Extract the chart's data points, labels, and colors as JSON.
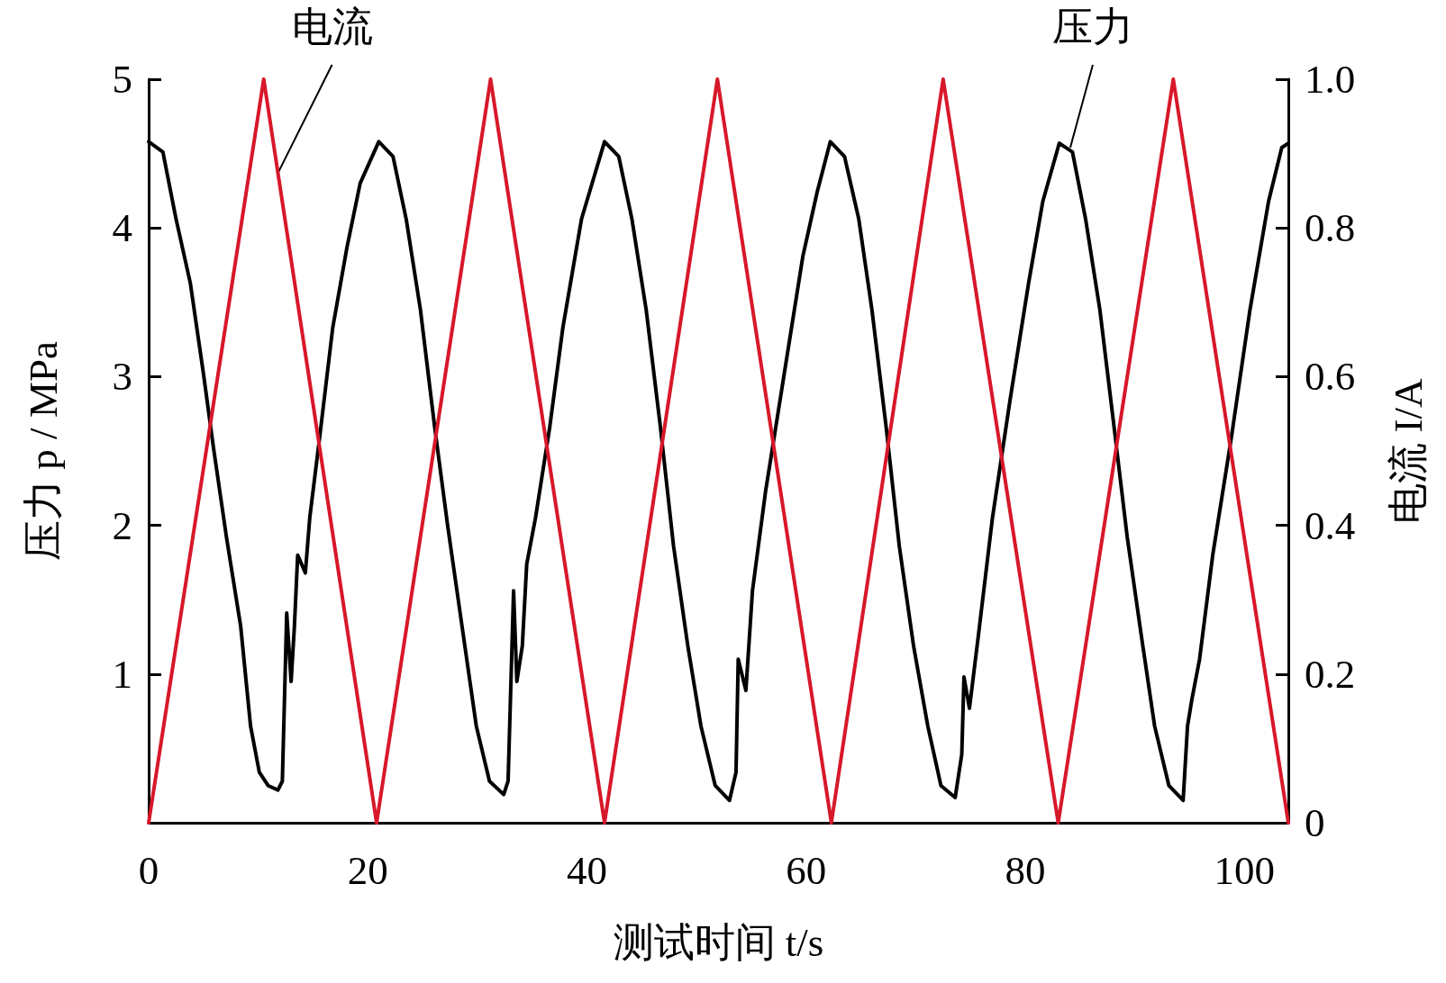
{
  "chart_data": {
    "type": "line",
    "xlabel": "测试时间 t/s",
    "ylabel": "压力 p / MPa",
    "y2label": "电流 I/A",
    "xlim": [
      0,
      104
    ],
    "xticks": [
      0,
      20,
      40,
      60,
      80,
      100
    ],
    "ylim": [
      0,
      5
    ],
    "yticks": [
      1,
      2,
      3,
      4,
      5
    ],
    "y2lim": [
      0,
      1
    ],
    "y2ticks": [
      0,
      0.2,
      0.4,
      0.6,
      {
        "value": 1,
        "label": "1.0"
      },
      0.8
    ],
    "grid": false,
    "marker": "none",
    "line_style": "solid",
    "annotations": [
      {
        "text": "电流",
        "x": 11.8,
        "y": 4.37
      },
      {
        "text": "压力",
        "x": 84.1,
        "y": 4.54
      }
    ],
    "series": [
      {
        "color": "#000000",
        "x": [
          0,
          1.3,
          2.5,
          3.8,
          5.0,
          5.9,
          7.1,
          8.4,
          9.3,
          10.1,
          10.9,
          11.8,
          12.2,
          12.6,
          13.0,
          13.3,
          13.6,
          14.3,
          14.7,
          15.6,
          16.8,
          18.1,
          19.3,
          21.0,
          22.3,
          23.5,
          24.8,
          26.1,
          27.3,
          28.6,
          29.9,
          31.1,
          32.4,
          32.8,
          33.3,
          33.6,
          34.1,
          34.5,
          35.3,
          36.6,
          37.8,
          39.5,
          41.6,
          42.9,
          44.1,
          45.4,
          46.7,
          47.9,
          49.2,
          50.4,
          51.7,
          53.0,
          53.6,
          53.8,
          54.5,
          55.1,
          56.3,
          58.0,
          59.7,
          61.0,
          62.2,
          63.5,
          64.8,
          66.0,
          67.3,
          68.5,
          69.8,
          71.1,
          72.3,
          73.6,
          74.2,
          74.4,
          74.9,
          75.7,
          77.0,
          78.6,
          80.3,
          81.6,
          83.1,
          84.3,
          85.5,
          86.8,
          88.1,
          89.3,
          90.6,
          91.8,
          93.1,
          94.4,
          94.8,
          95.2,
          95.9,
          97.1,
          98.8,
          100.5,
          102.2,
          103.4,
          104.0
        ],
        "values": [
          4.58,
          4.51,
          4.06,
          3.63,
          3.02,
          2.53,
          1.92,
          1.32,
          0.65,
          0.34,
          0.25,
          0.22,
          0.28,
          1.41,
          0.95,
          1.32,
          1.8,
          1.68,
          2.05,
          2.59,
          3.33,
          3.87,
          4.3,
          4.58,
          4.48,
          4.06,
          3.45,
          2.66,
          1.99,
          1.32,
          0.65,
          0.28,
          0.19,
          0.28,
          1.56,
          0.95,
          1.19,
          1.74,
          2.05,
          2.66,
          3.33,
          4.06,
          4.58,
          4.48,
          4.06,
          3.45,
          2.66,
          1.86,
          1.19,
          0.65,
          0.25,
          0.15,
          0.34,
          1.1,
          0.89,
          1.56,
          2.23,
          3.02,
          3.81,
          4.24,
          4.58,
          4.48,
          4.06,
          3.45,
          2.66,
          1.86,
          1.19,
          0.65,
          0.25,
          0.17,
          0.46,
          0.98,
          0.77,
          1.25,
          2.05,
          2.84,
          3.63,
          4.18,
          4.57,
          4.51,
          4.06,
          3.45,
          2.66,
          1.92,
          1.25,
          0.65,
          0.25,
          0.15,
          0.65,
          0.83,
          1.1,
          1.8,
          2.59,
          3.45,
          4.18,
          4.54,
          4.57
        ]
      },
      {
        "color": "#d7182a",
        "axis": "y2",
        "x": [
          0,
          10.5,
          20.8,
          31.2,
          41.6,
          51.9,
          62.3,
          72.5,
          83.0,
          93.5,
          104
        ],
        "values": [
          0,
          1,
          0,
          1,
          0,
          1,
          0,
          1,
          0,
          1,
          0
        ]
      }
    ]
  }
}
